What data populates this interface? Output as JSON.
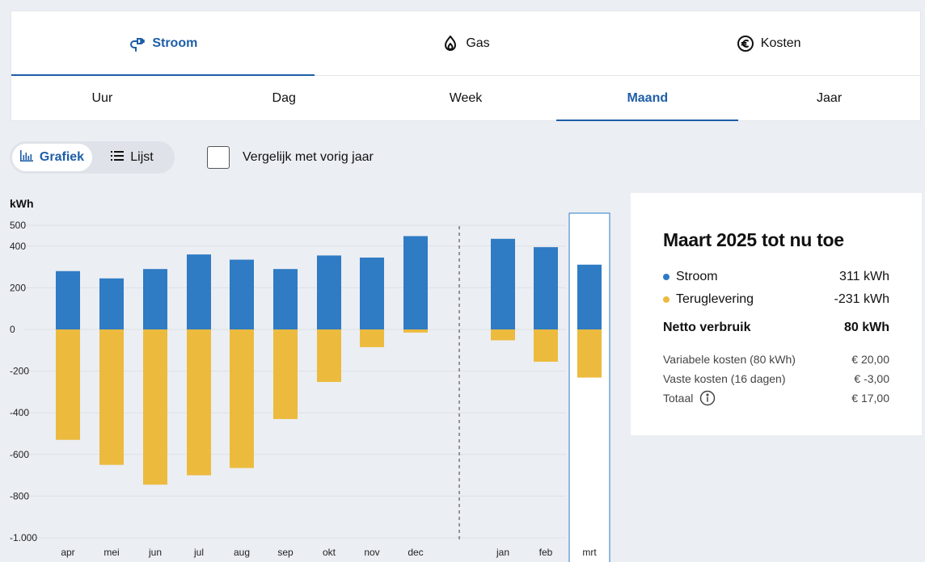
{
  "tabs": [
    {
      "label": "Stroom",
      "icon": "plug-icon",
      "active": true
    },
    {
      "label": "Gas",
      "icon": "flame-icon",
      "active": false
    },
    {
      "label": "Kosten",
      "icon": "euro-icon",
      "active": false
    }
  ],
  "periods": [
    {
      "label": "Uur",
      "active": false
    },
    {
      "label": "Dag",
      "active": false
    },
    {
      "label": "Week",
      "active": false
    },
    {
      "label": "Maand",
      "active": true
    },
    {
      "label": "Jaar",
      "active": false
    }
  ],
  "view_toggle": {
    "grafiek": "Grafiek",
    "lijst": "Lijst"
  },
  "compare": {
    "label": "Vergelijk met vorig jaar",
    "checked": false
  },
  "colors": {
    "accent": "#1e5ea8",
    "consumption": "#2f7bc4",
    "return": "#ecbb3e"
  },
  "summary": {
    "title": "Maart 2025 tot nu toe",
    "stroom_label": "Stroom",
    "stroom_value": "311 kWh",
    "terug_label": "Teruglevering",
    "terug_value": "-231 kWh",
    "netto_label": "Netto verbruik",
    "netto_value": "80 kWh",
    "variabel_label": "Variabele kosten (80 kWh)",
    "variabel_value": "€ 20,00",
    "vast_label": "Vaste kosten (16 dagen)",
    "vast_value": "€ -3,00",
    "totaal_label": "Totaal",
    "totaal_value": "€ 17,00"
  },
  "chart_data": {
    "type": "bar",
    "ylabel": "kWh",
    "ylim": [
      -1000,
      500
    ],
    "yticks": [
      500,
      400,
      200,
      0,
      -200,
      -400,
      -600,
      -800,
      -1000
    ],
    "ytick_labels": [
      "500",
      "400",
      "200",
      "0",
      "-200",
      "-400",
      "-600",
      "-800",
      "-1.000"
    ],
    "categories": [
      "apr",
      "mei",
      "jun",
      "jul",
      "aug",
      "sep",
      "okt",
      "nov",
      "dec",
      "jan",
      "feb",
      "mrt"
    ],
    "year_break_after": "dec",
    "highlighted": "mrt",
    "series": [
      {
        "name": "Stroom",
        "values": [
          280,
          245,
          290,
          360,
          335,
          290,
          355,
          345,
          448,
          435,
          395,
          311
        ]
      },
      {
        "name": "Teruglevering",
        "values": [
          -530,
          -650,
          -745,
          -700,
          -665,
          -430,
          -252,
          -85,
          -15,
          -52,
          -155,
          -231
        ]
      }
    ]
  }
}
